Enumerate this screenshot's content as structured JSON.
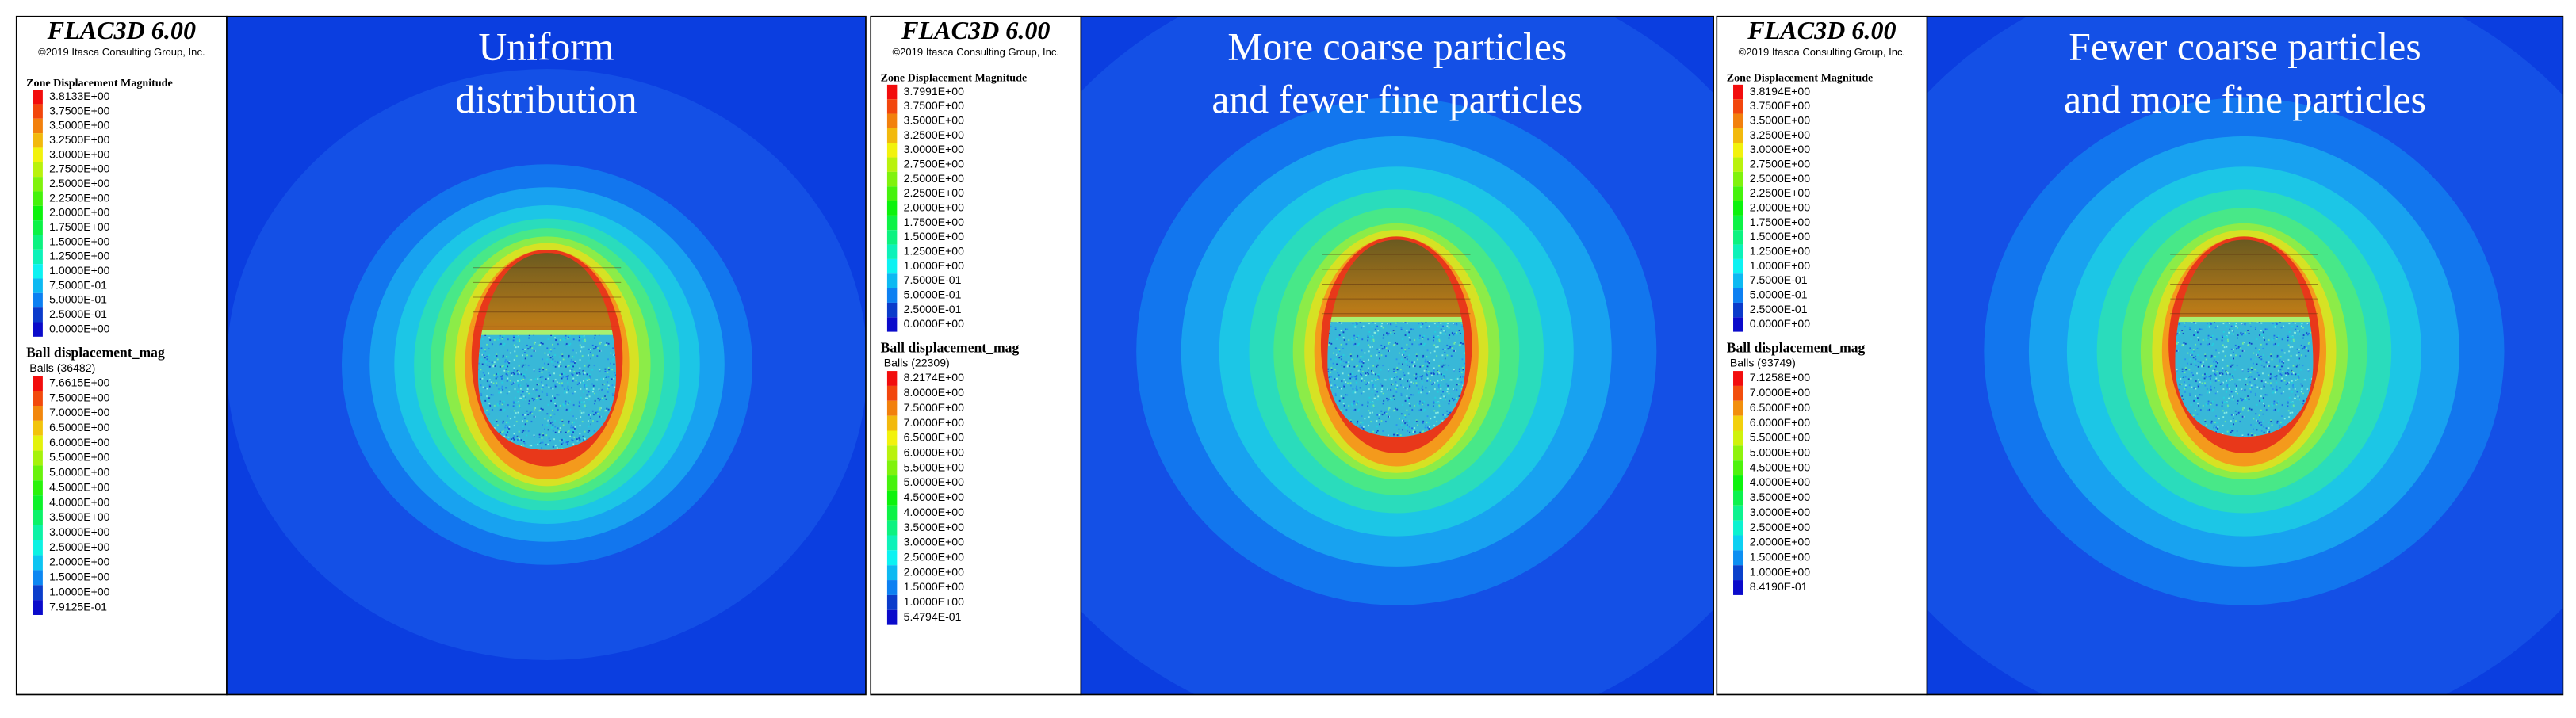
{
  "panels": [
    {
      "title": "FLAC3D 6.00",
      "copyright": "©2019 Itasca Consulting Group, Inc.",
      "zone_legend_title": "Zone Displacement Magnitude",
      "zone_labels": [
        "3.8133E+00",
        "3.7500E+00",
        "3.5000E+00",
        "3.2500E+00",
        "3.0000E+00",
        "2.7500E+00",
        "2.5000E+00",
        "2.2500E+00",
        "2.0000E+00",
        "1.7500E+00",
        "1.5000E+00",
        "1.2500E+00",
        "1.0000E+00",
        "7.5000E-01",
        "5.0000E-01",
        "2.5000E-01",
        "0.0000E+00"
      ],
      "ball_legend_title": "Ball displacement_mag",
      "ball_count": "Balls (36482)",
      "ball_labels": [
        "7.6615E+00",
        "7.5000E+00",
        "7.0000E+00",
        "6.5000E+00",
        "6.0000E+00",
        "5.5000E+00",
        "5.0000E+00",
        "4.5000E+00",
        "4.0000E+00",
        "3.5000E+00",
        "3.0000E+00",
        "2.5000E+00",
        "2.0000E+00",
        "1.5000E+00",
        "1.0000E+00",
        "7.9125E-01"
      ],
      "caption": [
        "Uniform",
        "distribution"
      ]
    },
    {
      "title": "FLAC3D 6.00",
      "copyright": "©2019 Itasca Consulting Group, Inc.",
      "zone_legend_title": "Zone Displacement Magnitude",
      "zone_labels": [
        "3.7991E+00",
        "3.7500E+00",
        "3.5000E+00",
        "3.2500E+00",
        "3.0000E+00",
        "2.7500E+00",
        "2.5000E+00",
        "2.2500E+00",
        "2.0000E+00",
        "1.7500E+00",
        "1.5000E+00",
        "1.2500E+00",
        "1.0000E+00",
        "7.5000E-01",
        "5.0000E-01",
        "2.5000E-01",
        "0.0000E+00"
      ],
      "ball_legend_title": "Ball displacement_mag",
      "ball_count": "Balls (22309)",
      "ball_labels": [
        "8.2174E+00",
        "8.0000E+00",
        "7.5000E+00",
        "7.0000E+00",
        "6.5000E+00",
        "6.0000E+00",
        "5.5000E+00",
        "5.0000E+00",
        "4.5000E+00",
        "4.0000E+00",
        "3.5000E+00",
        "3.0000E+00",
        "2.5000E+00",
        "2.0000E+00",
        "1.5000E+00",
        "1.0000E+00",
        "5.4794E-01"
      ],
      "caption": [
        "More coarse particles",
        "and fewer fine particles"
      ]
    },
    {
      "title": "FLAC3D 6.00",
      "copyright": "©2019 Itasca Consulting Group, Inc.",
      "zone_legend_title": "Zone Displacement Magnitude",
      "zone_labels": [
        "3.8194E+00",
        "3.7500E+00",
        "3.5000E+00",
        "3.2500E+00",
        "3.0000E+00",
        "2.7500E+00",
        "2.5000E+00",
        "2.2500E+00",
        "2.0000E+00",
        "1.7500E+00",
        "1.5000E+00",
        "1.2500E+00",
        "1.0000E+00",
        "7.5000E-01",
        "5.0000E-01",
        "2.5000E-01",
        "0.0000E+00"
      ],
      "ball_legend_title": "Ball displacement_mag",
      "ball_count": "Balls (93749)",
      "ball_labels": [
        "7.1258E+00",
        "7.0000E+00",
        "6.5000E+00",
        "6.0000E+00",
        "5.5000E+00",
        "5.0000E+00",
        "4.5000E+00",
        "4.0000E+00",
        "3.5000E+00",
        "3.0000E+00",
        "2.5000E+00",
        "2.0000E+00",
        "1.5000E+00",
        "1.0000E+00",
        "8.4190E-01"
      ],
      "caption": [
        "Fewer coarse particles",
        "and more fine particles"
      ]
    }
  ]
}
